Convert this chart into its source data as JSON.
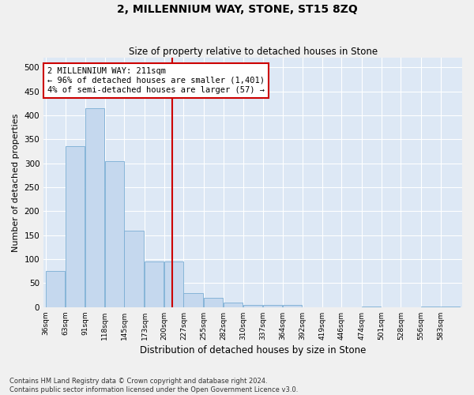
{
  "title": "2, MILLENNIUM WAY, STONE, ST15 8ZQ",
  "subtitle": "Size of property relative to detached houses in Stone",
  "xlabel": "Distribution of detached houses by size in Stone",
  "ylabel": "Number of detached properties",
  "bar_color": "#c5d8ee",
  "bar_edge_color": "#7aadd4",
  "vline_x": 211,
  "vline_color": "#cc0000",
  "annotation_line1": "2 MILLENNIUM WAY: 211sqm",
  "annotation_line2": "← 96% of detached houses are smaller (1,401)",
  "annotation_line3": "4% of semi-detached houses are larger (57) →",
  "annotation_box_color": "#cc0000",
  "bins": [
    36,
    63,
    91,
    118,
    145,
    173,
    200,
    227,
    255,
    282,
    310,
    337,
    364,
    392,
    419,
    446,
    474,
    501,
    528,
    556,
    583
  ],
  "values": [
    75,
    335,
    415,
    305,
    160,
    95,
    95,
    30,
    20,
    10,
    5,
    5,
    5,
    0,
    0,
    0,
    1,
    0,
    0,
    1,
    1
  ],
  "ylim": [
    0,
    520
  ],
  "yticks": [
    0,
    50,
    100,
    150,
    200,
    250,
    300,
    350,
    400,
    450,
    500
  ],
  "bg_color": "#dde8f5",
  "grid_color": "#ffffff",
  "fig_bg": "#f0f0f0",
  "footer": "Contains HM Land Registry data © Crown copyright and database right 2024.\nContains public sector information licensed under the Open Government Licence v3.0."
}
